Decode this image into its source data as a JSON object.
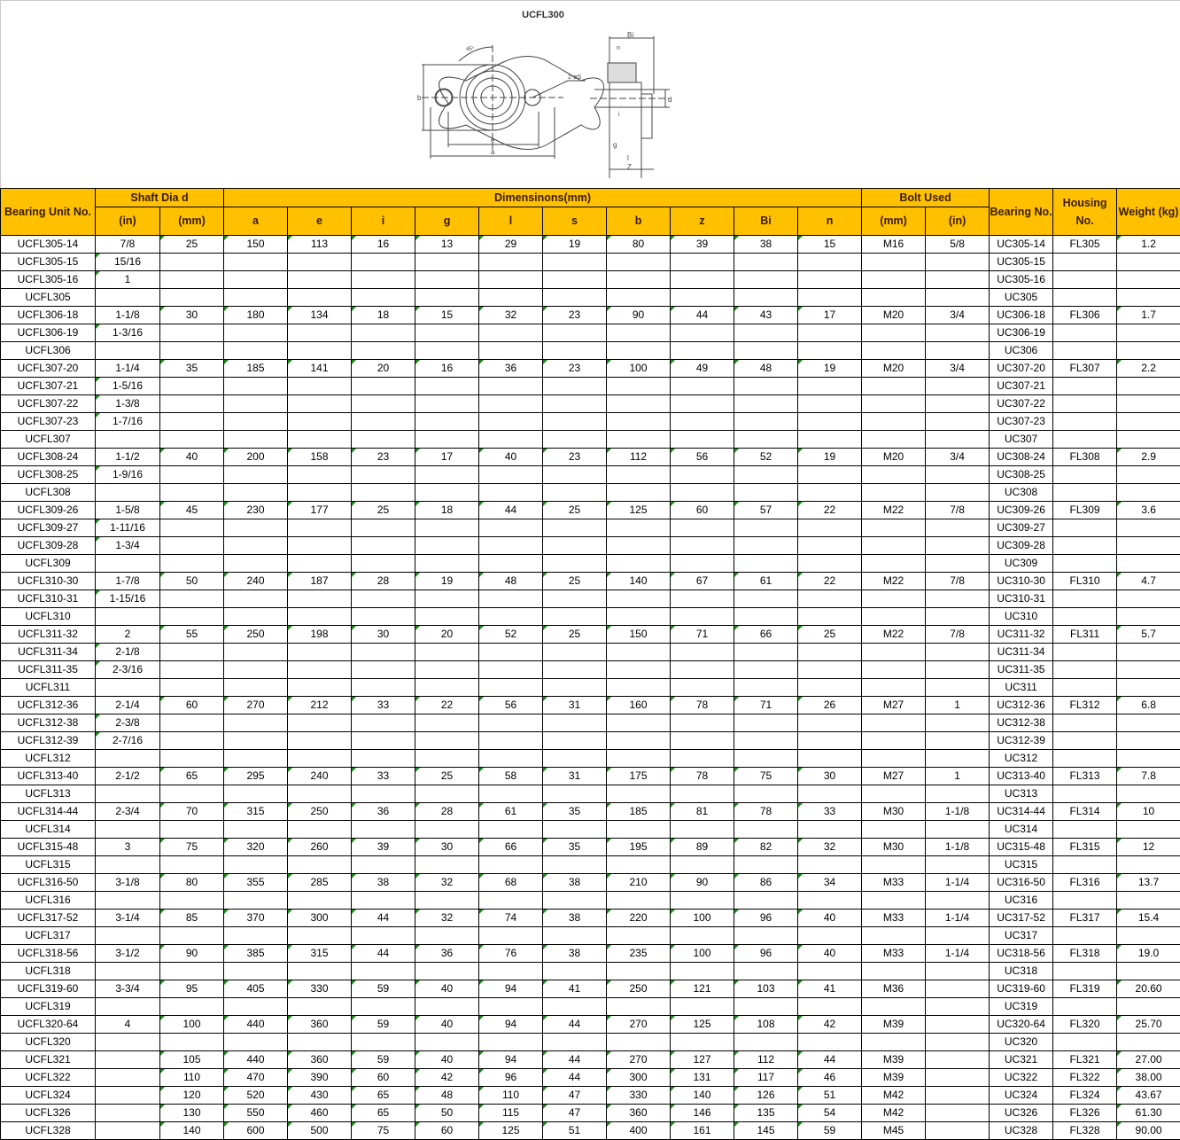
{
  "drawing": {
    "title": "UCFL300",
    "labels": {
      "a": "a",
      "e": "e",
      "b": "b",
      "bi": "Bi",
      "n": "n",
      "i": "i",
      "g": "g",
      "l": "l",
      "z": "Z",
      "d": "d",
      "s": "2-øS",
      "angle": "45°"
    }
  },
  "colors": {
    "header_bg": "#ffc000",
    "header_text": "#3a1c00",
    "text_marker": "#1a8a1a"
  },
  "table": {
    "group_headers": {
      "unit_no": "Bearing Unit No.",
      "shaft": "Shaft Dia d",
      "dims": "Dimensinons(mm)",
      "bolt": "Bolt Used",
      "bearing": "Bearing No.",
      "housing": "Housing No.",
      "weight": "Weight (kg)"
    },
    "sub_headers": [
      "(in)",
      "(mm)",
      "a",
      "e",
      "i",
      "g",
      "l",
      "s",
      "b",
      "z",
      "Bi",
      "n",
      "(mm)",
      "(in)"
    ],
    "rows": [
      [
        "UCFL305-14",
        "7/8",
        "25",
        "150",
        "113",
        "16",
        "13",
        "29",
        "19",
        "80",
        "39",
        "38",
        "15",
        "M16",
        "5/8",
        "UC305-14",
        "FL305",
        "1.2"
      ],
      [
        "UCFL305-15",
        "15/16",
        "",
        "",
        "",
        "",
        "",
        "",
        "",
        "",
        "",
        "",
        "",
        "",
        "",
        "UC305-15",
        "",
        ""
      ],
      [
        "UCFL305-16",
        "1",
        "",
        "",
        "",
        "",
        "",
        "",
        "",
        "",
        "",
        "",
        "",
        "",
        "",
        "UC305-16",
        "",
        ""
      ],
      [
        "UCFL305",
        "",
        "",
        "",
        "",
        "",
        "",
        "",
        "",
        "",
        "",
        "",
        "",
        "",
        "",
        "UC305",
        "",
        ""
      ],
      [
        "UCFL306-18",
        "1-1/8",
        "30",
        "180",
        "134",
        "18",
        "15",
        "32",
        "23",
        "90",
        "44",
        "43",
        "17",
        "M20",
        "3/4",
        "UC306-18",
        "FL306",
        "1.7"
      ],
      [
        "UCFL306-19",
        "1-3/16",
        "",
        "",
        "",
        "",
        "",
        "",
        "",
        "",
        "",
        "",
        "",
        "",
        "",
        "UC306-19",
        "",
        ""
      ],
      [
        "UCFL306",
        "",
        "",
        "",
        "",
        "",
        "",
        "",
        "",
        "",
        "",
        "",
        "",
        "",
        "",
        "UC306",
        "",
        ""
      ],
      [
        "UCFL307-20",
        "1-1/4",
        "35",
        "185",
        "141",
        "20",
        "16",
        "36",
        "23",
        "100",
        "49",
        "48",
        "19",
        "M20",
        "3/4",
        "UC307-20",
        "FL307",
        "2.2"
      ],
      [
        "UCFL307-21",
        "1-5/16",
        "",
        "",
        "",
        "",
        "",
        "",
        "",
        "",
        "",
        "",
        "",
        "",
        "",
        "UC307-21",
        "",
        ""
      ],
      [
        "UCFL307-22",
        "1-3/8",
        "",
        "",
        "",
        "",
        "",
        "",
        "",
        "",
        "",
        "",
        "",
        "",
        "",
        "UC307-22",
        "",
        ""
      ],
      [
        "UCFL307-23",
        "1-7/16",
        "",
        "",
        "",
        "",
        "",
        "",
        "",
        "",
        "",
        "",
        "",
        "",
        "",
        "UC307-23",
        "",
        ""
      ],
      [
        "UCFL307",
        "",
        "",
        "",
        "",
        "",
        "",
        "",
        "",
        "",
        "",
        "",
        "",
        "",
        "",
        "UC307",
        "",
        ""
      ],
      [
        "UCFL308-24",
        "1-1/2",
        "40",
        "200",
        "158",
        "23",
        "17",
        "40",
        "23",
        "112",
        "56",
        "52",
        "19",
        "M20",
        "3/4",
        "UC308-24",
        "FL308",
        "2.9"
      ],
      [
        "UCFL308-25",
        "1-9/16",
        "",
        "",
        "",
        "",
        "",
        "",
        "",
        "",
        "",
        "",
        "",
        "",
        "",
        "UC308-25",
        "",
        ""
      ],
      [
        "UCFL308",
        "",
        "",
        "",
        "",
        "",
        "",
        "",
        "",
        "",
        "",
        "",
        "",
        "",
        "",
        "UC308",
        "",
        ""
      ],
      [
        "UCFL309-26",
        "1-5/8",
        "45",
        "230",
        "177",
        "25",
        "18",
        "44",
        "25",
        "125",
        "60",
        "57",
        "22",
        "M22",
        "7/8",
        "UC309-26",
        "FL309",
        "3.6"
      ],
      [
        "UCFL309-27",
        "1-11/16",
        "",
        "",
        "",
        "",
        "",
        "",
        "",
        "",
        "",
        "",
        "",
        "",
        "",
        "UC309-27",
        "",
        ""
      ],
      [
        "UCFL309-28",
        "1-3/4",
        "",
        "",
        "",
        "",
        "",
        "",
        "",
        "",
        "",
        "",
        "",
        "",
        "",
        "UC309-28",
        "",
        ""
      ],
      [
        "UCFL309",
        "",
        "",
        "",
        "",
        "",
        "",
        "",
        "",
        "",
        "",
        "",
        "",
        "",
        "",
        "UC309",
        "",
        ""
      ],
      [
        "UCFL310-30",
        "1-7/8",
        "50",
        "240",
        "187",
        "28",
        "19",
        "48",
        "25",
        "140",
        "67",
        "61",
        "22",
        "M22",
        "7/8",
        "UC310-30",
        "FL310",
        "4.7"
      ],
      [
        "UCFL310-31",
        "1-15/16",
        "",
        "",
        "",
        "",
        "",
        "",
        "",
        "",
        "",
        "",
        "",
        "",
        "",
        "UC310-31",
        "",
        ""
      ],
      [
        "UCFL310",
        "",
        "",
        "",
        "",
        "",
        "",
        "",
        "",
        "",
        "",
        "",
        "",
        "",
        "",
        "UC310",
        "",
        ""
      ],
      [
        "UCFL311-32",
        "2",
        "55",
        "250",
        "198",
        "30",
        "20",
        "52",
        "25",
        "150",
        "71",
        "66",
        "25",
        "M22",
        "7/8",
        "UC311-32",
        "FL311",
        "5.7"
      ],
      [
        "UCFL311-34",
        "2-1/8",
        "",
        "",
        "",
        "",
        "",
        "",
        "",
        "",
        "",
        "",
        "",
        "",
        "",
        "UC311-34",
        "",
        ""
      ],
      [
        "UCFL311-35",
        "2-3/16",
        "",
        "",
        "",
        "",
        "",
        "",
        "",
        "",
        "",
        "",
        "",
        "",
        "",
        "UC311-35",
        "",
        ""
      ],
      [
        "UCFL311",
        "",
        "",
        "",
        "",
        "",
        "",
        "",
        "",
        "",
        "",
        "",
        "",
        "",
        "",
        "UC311",
        "",
        ""
      ],
      [
        "UCFL312-36",
        "2-1/4",
        "60",
        "270",
        "212",
        "33",
        "22",
        "56",
        "31",
        "160",
        "78",
        "71",
        "26",
        "M27",
        "1",
        "UC312-36",
        "FL312",
        "6.8"
      ],
      [
        "UCFL312-38",
        "2-3/8",
        "",
        "",
        "",
        "",
        "",
        "",
        "",
        "",
        "",
        "",
        "",
        "",
        "",
        "UC312-38",
        "",
        ""
      ],
      [
        "UCFL312-39",
        "2-7/16",
        "",
        "",
        "",
        "",
        "",
        "",
        "",
        "",
        "",
        "",
        "",
        "",
        "",
        "UC312-39",
        "",
        ""
      ],
      [
        "UCFL312",
        "",
        "",
        "",
        "",
        "",
        "",
        "",
        "",
        "",
        "",
        "",
        "",
        "",
        "",
        "UC312",
        "",
        ""
      ],
      [
        "UCFL313-40",
        "2-1/2",
        "65",
        "295",
        "240",
        "33",
        "25",
        "58",
        "31",
        "175",
        "78",
        "75",
        "30",
        "M27",
        "1",
        "UC313-40",
        "FL313",
        "7.8"
      ],
      [
        "UCFL313",
        "",
        "",
        "",
        "",
        "",
        "",
        "",
        "",
        "",
        "",
        "",
        "",
        "",
        "",
        "UC313",
        "",
        ""
      ],
      [
        "UCFL314-44",
        "2-3/4",
        "70",
        "315",
        "250",
        "36",
        "28",
        "61",
        "35",
        "185",
        "81",
        "78",
        "33",
        "M30",
        "1-1/8",
        "UC314-44",
        "FL314",
        "10"
      ],
      [
        "UCFL314",
        "",
        "",
        "",
        "",
        "",
        "",
        "",
        "",
        "",
        "",
        "",
        "",
        "",
        "",
        "UC314",
        "",
        ""
      ],
      [
        "UCFL315-48",
        "3",
        "75",
        "320",
        "260",
        "39",
        "30",
        "66",
        "35",
        "195",
        "89",
        "82",
        "32",
        "M30",
        "1-1/8",
        "UC315-48",
        "FL315",
        "12"
      ],
      [
        "UCFL315",
        "",
        "",
        "",
        "",
        "",
        "",
        "",
        "",
        "",
        "",
        "",
        "",
        "",
        "",
        "UC315",
        "",
        ""
      ],
      [
        "UCFL316-50",
        "3-1/8",
        "80",
        "355",
        "285",
        "38",
        "32",
        "68",
        "38",
        "210",
        "90",
        "86",
        "34",
        "M33",
        "1-1/4",
        "UC316-50",
        "FL316",
        "13.7"
      ],
      [
        "UCFL316",
        "",
        "",
        "",
        "",
        "",
        "",
        "",
        "",
        "",
        "",
        "",
        "",
        "",
        "",
        "UC316",
        "",
        ""
      ],
      [
        "UCFL317-52",
        "3-1/4",
        "85",
        "370",
        "300",
        "44",
        "32",
        "74",
        "38",
        "220",
        "100",
        "96",
        "40",
        "M33",
        "1-1/4",
        "UC317-52",
        "FL317",
        "15.4"
      ],
      [
        "UCFL317",
        "",
        "",
        "",
        "",
        "",
        "",
        "",
        "",
        "",
        "",
        "",
        "",
        "",
        "",
        "UC317",
        "",
        ""
      ],
      [
        "UCFL318-56",
        "3-1/2",
        "90",
        "385",
        "315",
        "44",
        "36",
        "76",
        "38",
        "235",
        "100",
        "96",
        "40",
        "M33",
        "1-1/4",
        "UC318-56",
        "FL318",
        "19.0"
      ],
      [
        "UCFL318",
        "",
        "",
        "",
        "",
        "",
        "",
        "",
        "",
        "",
        "",
        "",
        "",
        "",
        "",
        "UC318",
        "",
        ""
      ],
      [
        "UCFL319-60",
        "3-3/4",
        "95",
        "405",
        "330",
        "59",
        "40",
        "94",
        "41",
        "250",
        "121",
        "103",
        "41",
        "M36",
        "",
        "UC319-60",
        "FL319",
        "20.60"
      ],
      [
        "UCFL319",
        "",
        "",
        "",
        "",
        "",
        "",
        "",
        "",
        "",
        "",
        "",
        "",
        "",
        "",
        "UC319",
        "",
        ""
      ],
      [
        "UCFL320-64",
        "4",
        "100",
        "440",
        "360",
        "59",
        "40",
        "94",
        "44",
        "270",
        "125",
        "108",
        "42",
        "M39",
        "",
        "UC320-64",
        "FL320",
        "25.70"
      ],
      [
        "UCFL320",
        "",
        "",
        "",
        "",
        "",
        "",
        "",
        "",
        "",
        "",
        "",
        "",
        "",
        "",
        "UC320",
        "",
        ""
      ],
      [
        "UCFL321",
        "",
        "105",
        "440",
        "360",
        "59",
        "40",
        "94",
        "44",
        "270",
        "127",
        "112",
        "44",
        "M39",
        "",
        "UC321",
        "FL321",
        "27.00"
      ],
      [
        "UCFL322",
        "",
        "110",
        "470",
        "390",
        "60",
        "42",
        "96",
        "44",
        "300",
        "131",
        "117",
        "46",
        "M39",
        "",
        "UC322",
        "FL322",
        "38.00"
      ],
      [
        "UCFL324",
        "",
        "120",
        "520",
        "430",
        "65",
        "48",
        "110",
        "47",
        "330",
        "140",
        "126",
        "51",
        "M42",
        "",
        "UC324",
        "FL324",
        "43.67"
      ],
      [
        "UCFL326",
        "",
        "130",
        "550",
        "460",
        "65",
        "50",
        "115",
        "47",
        "360",
        "146",
        "135",
        "54",
        "M42",
        "",
        "UC326",
        "FL326",
        "61.30"
      ],
      [
        "UCFL328",
        "",
        "140",
        "600",
        "500",
        "75",
        "60",
        "125",
        "51",
        "400",
        "161",
        "145",
        "59",
        "M45",
        "",
        "UC328",
        "FL328",
        "90.00"
      ]
    ]
  }
}
